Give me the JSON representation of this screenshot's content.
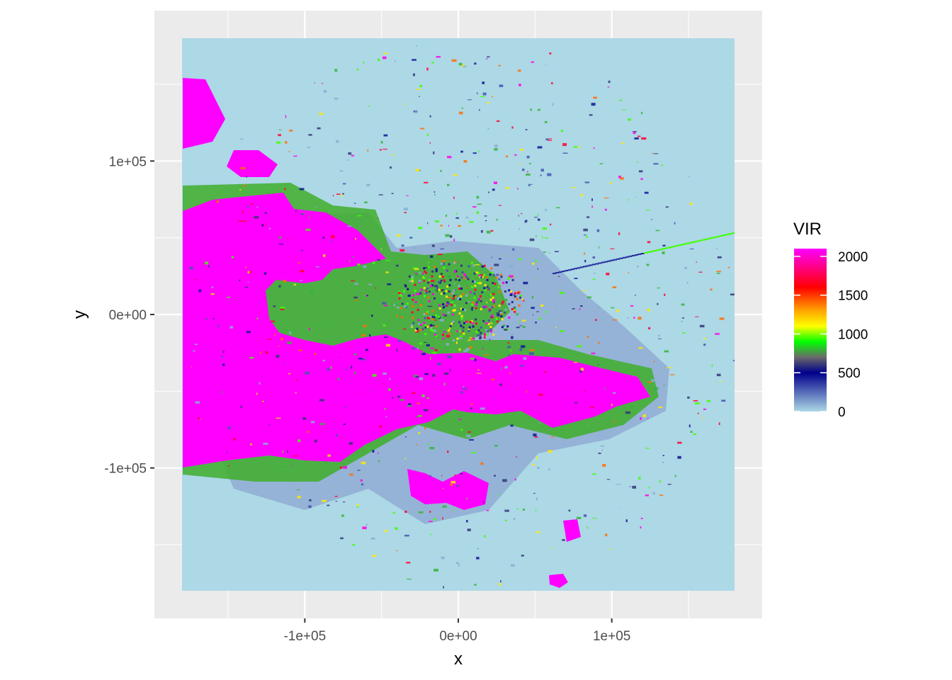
{
  "chart_data": {
    "type": "heatmap",
    "xlabel": "x",
    "ylabel": "y",
    "xlim": [
      -198000,
      198000
    ],
    "ylim": [
      -198000,
      198000
    ],
    "raster_extent": {
      "x": [
        -180000,
        180000
      ],
      "y": [
        -180000,
        180000
      ]
    },
    "x_ticks": [
      {
        "value": -100000,
        "label": "-1e+05"
      },
      {
        "value": 0,
        "label": "0e+00"
      },
      {
        "value": 100000,
        "label": "1e+05"
      }
    ],
    "y_ticks": [
      {
        "value": 100000,
        "label": "1e+05"
      },
      {
        "value": 0,
        "label": "0e+00"
      },
      {
        "value": -100000,
        "label": "-1e+05"
      }
    ],
    "grid": true,
    "background": "#ebebeb",
    "na_color": "#add8e6",
    "legend": {
      "title": "VIR",
      "position": "right",
      "limits": [
        0,
        2100
      ],
      "breaks": [
        {
          "value": 2000,
          "label": "2000"
        },
        {
          "value": 1500,
          "label": "1500"
        },
        {
          "value": 1000,
          "label": "1000"
        },
        {
          "value": 500,
          "label": "500"
        },
        {
          "value": 0,
          "label": "0"
        }
      ],
      "gradient": [
        {
          "value": 0,
          "color": "#add8e6"
        },
        {
          "value": 500,
          "color": "#00008b"
        },
        {
          "value": 700,
          "color": "#6a6a6a"
        },
        {
          "value": 900,
          "color": "#00ff00"
        },
        {
          "value": 1100,
          "color": "#ffff00"
        },
        {
          "value": 1300,
          "color": "#ffa500"
        },
        {
          "value": 1600,
          "color": "#ff0000"
        },
        {
          "value": 2100,
          "color": "#ff00ff"
        }
      ]
    }
  }
}
